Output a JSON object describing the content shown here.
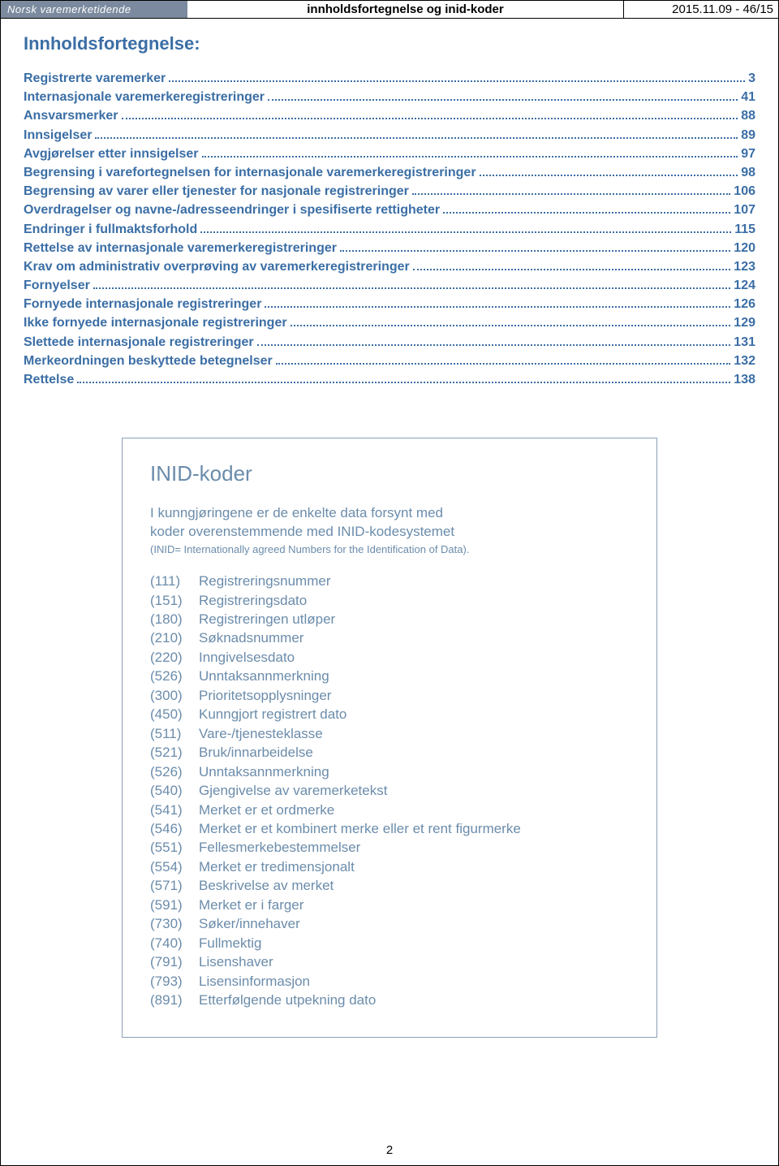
{
  "header": {
    "brand": "Norsk varemerketidende",
    "center": "innholdsfortegnelse og inid-koder",
    "right": "2015.11.09 - 46/15"
  },
  "toc": {
    "title": "Innholdsfortegnelse:",
    "items": [
      {
        "label": "Registrerte varemerker",
        "page": "3"
      },
      {
        "label": "Internasjonale varemerkeregistreringer",
        "page": "41"
      },
      {
        "label": "Ansvarsmerker",
        "page": "88"
      },
      {
        "label": "Innsigelser",
        "page": "89"
      },
      {
        "label": "Avgjørelser etter innsigelser",
        "page": "97"
      },
      {
        "label": "Begrensing i varefortegnelsen for internasjonale varemerkeregistreringer",
        "page": "98"
      },
      {
        "label": "Begrensing av varer eller tjenester for nasjonale registreringer",
        "page": "106"
      },
      {
        "label": "Overdragelser og navne-/adresseendringer i spesifiserte rettigheter",
        "page": "107"
      },
      {
        "label": "Endringer i fullmaktsforhold",
        "page": "115"
      },
      {
        "label": "Rettelse av internasjonale varemerkeregistreringer",
        "page": "120"
      },
      {
        "label": "Krav om administrativ overprøving av varemerkeregistreringer",
        "page": "123"
      },
      {
        "label": "Fornyelser",
        "page": "124"
      },
      {
        "label": "Fornyede internasjonale registreringer",
        "page": "126"
      },
      {
        "label": "Ikke fornyede internasjonale registreringer",
        "page": "129"
      },
      {
        "label": "Slettede internasjonale registreringer",
        "page": "131"
      },
      {
        "label": "Merkeordningen beskyttede betegnelser",
        "page": "132"
      },
      {
        "label": "Rettelse",
        "page": "138"
      }
    ]
  },
  "inid": {
    "title": "INID-koder",
    "intro1": "I kunngjøringene er de enkelte data forsynt med",
    "intro2": "koder overenstemmende med INID-kodesystemet",
    "sub": "(INID= Internationally agreed Numbers for the Identification of Data).",
    "codes": [
      {
        "code": "(111)",
        "label": "Registreringsnummer"
      },
      {
        "code": "(151)",
        "label": "Registreringsdato"
      },
      {
        "code": "(180)",
        "label": "Registreringen utløper"
      },
      {
        "code": "(210)",
        "label": "Søknadsnummer"
      },
      {
        "code": "(220)",
        "label": "Inngivelsesdato"
      },
      {
        "code": "(526)",
        "label": " Unntaksannmerkning"
      },
      {
        "code": "(300)",
        "label": "Prioritetsopplysninger"
      },
      {
        "code": "(450)",
        "label": "Kunngjort registrert dato"
      },
      {
        "code": "(511)",
        "label": "Vare-/tjenesteklasse"
      },
      {
        "code": "(521)",
        "label": "Bruk/innarbeidelse"
      },
      {
        "code": "(526)",
        "label": " Unntaksannmerkning"
      },
      {
        "code": "(540)",
        "label": "Gjengivelse av varemerketekst"
      },
      {
        "code": "(541)",
        "label": "Merket er et ordmerke"
      },
      {
        "code": "(546)",
        "label": "Merket er et kombinert merke eller et rent figurmerke"
      },
      {
        "code": "(551)",
        "label": "Fellesmerkebestemmelser"
      },
      {
        "code": "(554)",
        "label": "Merket er tredimensjonalt"
      },
      {
        "code": "(571)",
        "label": "Beskrivelse av merket"
      },
      {
        "code": "(591)",
        "label": "Merket er i farger"
      },
      {
        "code": "(730)",
        "label": "Søker/innehaver"
      },
      {
        "code": "(740)",
        "label": "Fullmektig"
      },
      {
        "code": "(791)",
        "label": "Lisenshaver"
      },
      {
        "code": "(793)",
        "label": "Lisensinformasjon"
      },
      {
        "code": "(891)",
        "label": "Etterfølgende utpekning dato"
      }
    ]
  },
  "footer": {
    "pagenum": "2"
  }
}
